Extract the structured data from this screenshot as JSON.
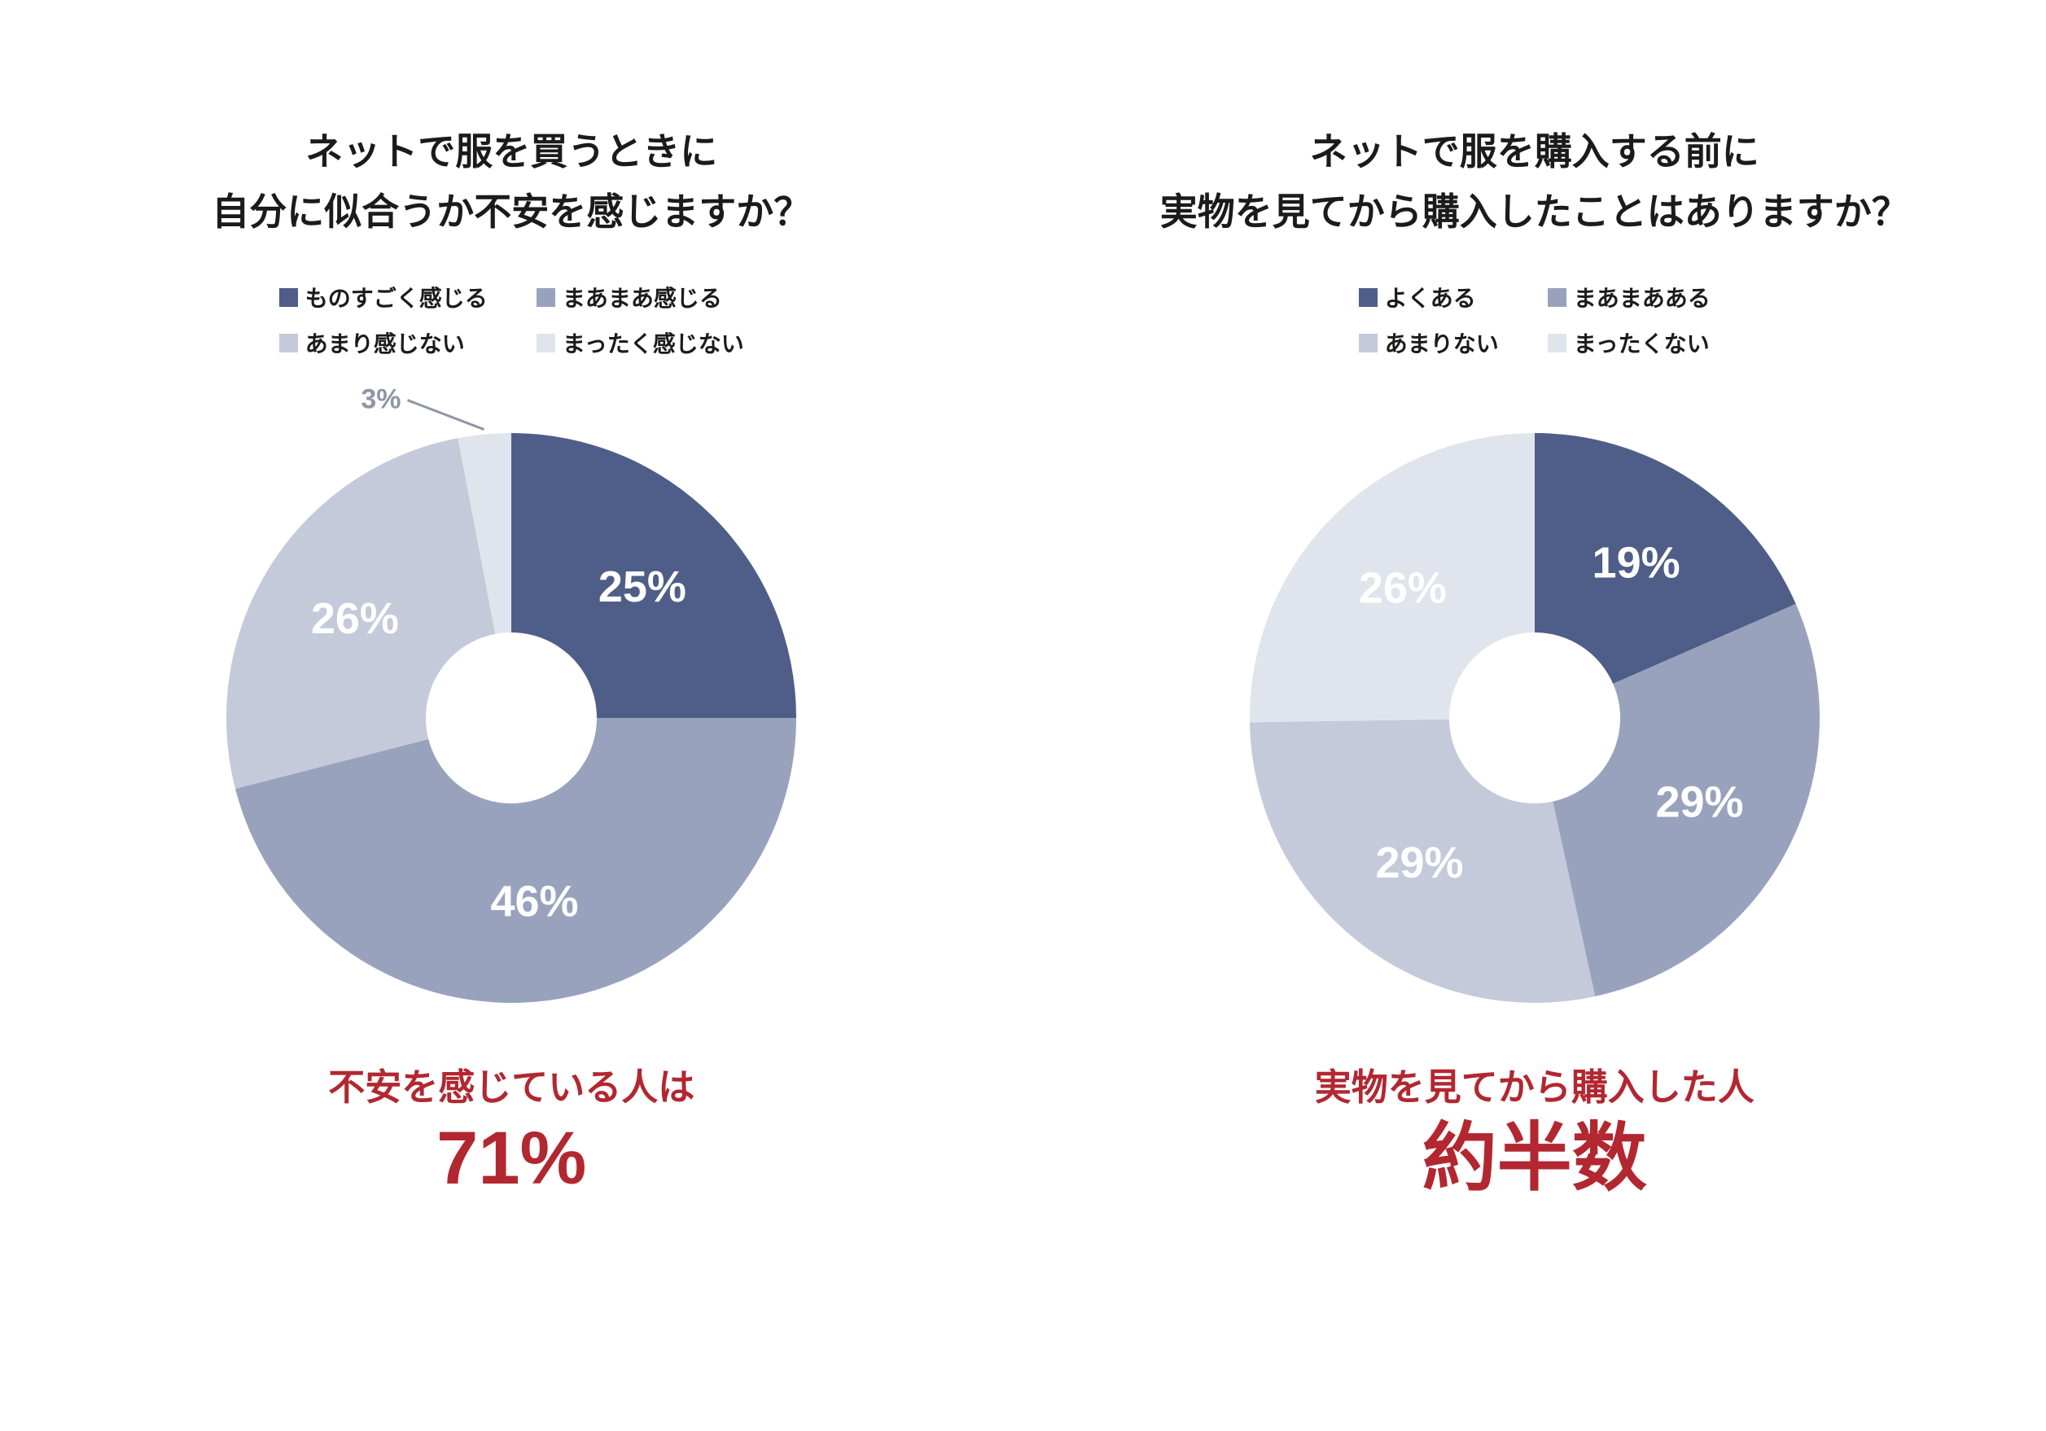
{
  "page": {
    "background": "#ffffff",
    "text_color": "#1b1b1b"
  },
  "colors": {
    "accent_red": "#b22730",
    "slice_dark_navy": "#4f5e88",
    "slice_medium_blue_gray": "#99a2bd",
    "slice_light_blue_gray": "#c5cada",
    "slice_lightest_gray": "#e0e4ec",
    "inside_label_white": "#ffffff",
    "outside_label_gray": "#8f96a4"
  },
  "chart_data": [
    {
      "type": "pie",
      "donut": true,
      "hole_ratio": 0.3,
      "start_angle_deg": 0,
      "direction": "clockwise",
      "legend_position": "top",
      "title_lines": [
        "ネットで服を買うときに",
        "自分に似合うか不安を感じますか？"
      ],
      "categories": [
        "ものすごく感じる",
        "まあまあ感じる",
        "あまり感じない",
        "まったく感じない"
      ],
      "values": [
        25,
        46,
        26,
        3
      ],
      "value_labels": [
        "25%",
        "46%",
        "26%",
        "3%"
      ],
      "colors": [
        "#4f5e88",
        "#99a2bd",
        "#c5cada",
        "#e0e4ec"
      ],
      "label_inside": [
        true,
        true,
        true,
        false
      ],
      "inside_label_color": "#ffffff",
      "outside_label_color": "#8f96a4",
      "annotation": {
        "line1": "不安を感じている人は",
        "line2": "71%",
        "color": "#b22730"
      }
    },
    {
      "type": "pie",
      "donut": true,
      "hole_ratio": 0.3,
      "start_angle_deg": 0,
      "direction": "clockwise",
      "legend_position": "top",
      "title_lines": [
        "ネットで服を購入する前に",
        "実物を見てから購入したことはありますか？"
      ],
      "categories": [
        "よくある",
        "まあまあある",
        "あまりない",
        "まったくない"
      ],
      "values": [
        19,
        29,
        29,
        26
      ],
      "value_labels": [
        "19%",
        "29%",
        "29%",
        "26%"
      ],
      "colors": [
        "#4f5e88",
        "#99a2bd",
        "#c5cada",
        "#e0e4ec"
      ],
      "label_inside": [
        true,
        true,
        true,
        true
      ],
      "inside_label_color": "#ffffff",
      "outside_label_color": "#8f96a4",
      "annotation": {
        "line1": "実物を見てから購入した人",
        "line2": "約半数",
        "color": "#b22730"
      }
    }
  ]
}
